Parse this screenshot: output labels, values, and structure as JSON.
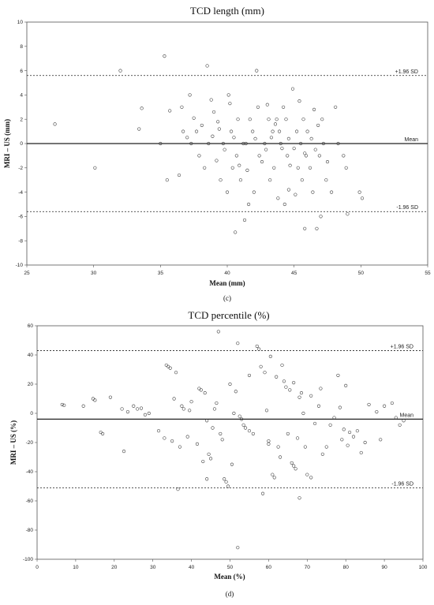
{
  "chart_data": [
    {
      "type": "scatter",
      "panel_label": "(c)",
      "title": "TCD length (mm)",
      "xlabel": "Mean (mm)",
      "ylabel": "MRI – US (mm)",
      "xlim": [
        25,
        55
      ],
      "ylim": [
        -10,
        10
      ],
      "xticks": [
        25,
        30,
        35,
        40,
        45,
        50,
        55
      ],
      "yticks": [
        -10,
        -8,
        -6,
        -4,
        -2,
        0,
        2,
        4,
        6,
        8,
        10
      ],
      "grid": false,
      "lines": [
        {
          "label": "+1.96 SD",
          "value": 5.6,
          "style": "dashed"
        },
        {
          "label": "Mean",
          "value": 0,
          "style": "solid"
        },
        {
          "label": "-1.96 SD",
          "value": -5.6,
          "style": "dashed"
        }
      ],
      "series": [
        {
          "marker": "open-circle",
          "points": [
            [
              27.1,
              1.6
            ],
            [
              30.1,
              -2
            ],
            [
              32,
              6
            ],
            [
              33.4,
              1.2
            ],
            [
              33.6,
              2.9
            ],
            [
              35,
              0
            ],
            [
              35.3,
              7.2
            ],
            [
              35.5,
              -3
            ],
            [
              35.7,
              2.7
            ],
            [
              36.4,
              -2.6
            ],
            [
              36.6,
              3
            ],
            [
              36.7,
              1
            ],
            [
              37,
              0.5
            ],
            [
              37.2,
              4
            ],
            [
              37.3,
              0
            ],
            [
              37.5,
              2.1
            ],
            [
              37.7,
              1
            ],
            [
              37.9,
              -1
            ],
            [
              38.1,
              1.5
            ],
            [
              38.3,
              -2
            ],
            [
              38.5,
              6.4
            ],
            [
              38.6,
              0
            ],
            [
              38.8,
              3.6
            ],
            [
              39,
              2.6
            ],
            [
              39.2,
              -1.4
            ],
            [
              39.3,
              1.8
            ],
            [
              39.5,
              -3
            ],
            [
              39.7,
              0
            ],
            [
              39.8,
              -0.5
            ],
            [
              40,
              -4
            ],
            [
              40.1,
              4
            ],
            [
              40.2,
              3.3
            ],
            [
              40.3,
              1
            ],
            [
              40.4,
              -2
            ],
            [
              40.5,
              0.5
            ],
            [
              40.6,
              -7.3
            ],
            [
              40.7,
              -1
            ],
            [
              40.8,
              2
            ],
            [
              41,
              -3
            ],
            [
              41.2,
              0
            ],
            [
              41.3,
              -6.3
            ],
            [
              41.5,
              -2.2
            ],
            [
              41.6,
              -5
            ],
            [
              41.7,
              2
            ],
            [
              41.9,
              1
            ],
            [
              42,
              -4
            ],
            [
              42.1,
              0.4
            ],
            [
              42.2,
              6
            ],
            [
              42.3,
              3
            ],
            [
              42.4,
              -1
            ],
            [
              42.6,
              -1.5
            ],
            [
              42.8,
              0
            ],
            [
              43,
              3.2
            ],
            [
              43.1,
              2
            ],
            [
              43.2,
              -3
            ],
            [
              43.3,
              0.5
            ],
            [
              43.4,
              1
            ],
            [
              43.5,
              -2
            ],
            [
              43.7,
              2
            ],
            [
              43.8,
              -4.5
            ],
            [
              43.9,
              1
            ],
            [
              44,
              0
            ],
            [
              44.1,
              -0.4
            ],
            [
              44.2,
              3
            ],
            [
              44.3,
              -5
            ],
            [
              44.4,
              2
            ],
            [
              44.5,
              -1
            ],
            [
              44.6,
              0.4
            ],
            [
              44.7,
              -1.8
            ],
            [
              44.9,
              4.5
            ],
            [
              45,
              -0.4
            ],
            [
              45.1,
              -4.2
            ],
            [
              45.2,
              1
            ],
            [
              45.3,
              -2
            ],
            [
              45.4,
              3.5
            ],
            [
              45.5,
              0
            ],
            [
              45.6,
              -3
            ],
            [
              45.7,
              2
            ],
            [
              45.8,
              -7
            ],
            [
              45.9,
              -1
            ],
            [
              46,
              1
            ],
            [
              46.2,
              -2
            ],
            [
              46.3,
              0.4
            ],
            [
              46.4,
              -4
            ],
            [
              46.5,
              2.8
            ],
            [
              46.6,
              -0.5
            ],
            [
              46.7,
              -7
            ],
            [
              46.8,
              1.5
            ],
            [
              46.9,
              -1
            ],
            [
              47,
              -6
            ],
            [
              47.1,
              2
            ],
            [
              47.2,
              0
            ],
            [
              47.4,
              -3
            ],
            [
              47.5,
              -1.5
            ],
            [
              47.8,
              -4
            ],
            [
              48.1,
              3
            ],
            [
              48.3,
              0
            ],
            [
              48.7,
              -1
            ],
            [
              48.9,
              -2
            ],
            [
              49,
              -5.8
            ],
            [
              49.9,
              -4
            ],
            [
              50.1,
              -4.5
            ],
            [
              44.6,
              -3.8
            ],
            [
              41.4,
              0
            ],
            [
              39.4,
              1.2
            ],
            [
              42.9,
              -0.5
            ],
            [
              43.6,
              1.6
            ],
            [
              45.8,
              -0.8
            ],
            [
              40.9,
              -1.8
            ],
            [
              38.9,
              0.6
            ]
          ]
        }
      ]
    },
    {
      "type": "scatter",
      "panel_label": "(d)",
      "title": "TCD percentile (%)",
      "xlabel": "Mean (%)",
      "ylabel": "MRI – US (%)",
      "xlim": [
        0,
        100
      ],
      "ylim": [
        -100,
        60
      ],
      "xticks": [
        0,
        10,
        20,
        30,
        40,
        50,
        60,
        70,
        80,
        90,
        100
      ],
      "yticks": [
        -100,
        -80,
        -60,
        -40,
        -20,
        0,
        20,
        40,
        60
      ],
      "grid": false,
      "lines": [
        {
          "label": "+1.96 SD",
          "value": 43,
          "style": "dashed"
        },
        {
          "label": "Mean",
          "value": -4,
          "style": "solid"
        },
        {
          "label": "-1.96 SD",
          "value": -51,
          "style": "dashed"
        }
      ],
      "series": [
        {
          "marker": "open-circle",
          "points": [
            [
              6.5,
              6
            ],
            [
              7,
              5.5
            ],
            [
              14.5,
              10
            ],
            [
              15,
              9
            ],
            [
              16.5,
              -13
            ],
            [
              17,
              -14
            ],
            [
              19,
              11
            ],
            [
              22,
              3
            ],
            [
              22.5,
              -26
            ],
            [
              23.5,
              1
            ],
            [
              25,
              5
            ],
            [
              26,
              3
            ],
            [
              27,
              3.5
            ],
            [
              28,
              -1
            ],
            [
              31.5,
              -12
            ],
            [
              33,
              -17
            ],
            [
              33.5,
              33
            ],
            [
              34,
              32
            ],
            [
              34.5,
              31
            ],
            [
              35,
              -19
            ],
            [
              35.5,
              10
            ],
            [
              36,
              28
            ],
            [
              36.5,
              -52
            ],
            [
              37,
              -23
            ],
            [
              37.5,
              5
            ],
            [
              38,
              3
            ],
            [
              39,
              -16
            ],
            [
              39.5,
              2
            ],
            [
              40,
              8
            ],
            [
              41.5,
              -21
            ],
            [
              42,
              17
            ],
            [
              42.5,
              16
            ],
            [
              43,
              -33
            ],
            [
              43.5,
              14
            ],
            [
              44,
              -5
            ],
            [
              44.5,
              -28
            ],
            [
              45,
              -31
            ],
            [
              45.5,
              -10
            ],
            [
              46,
              3
            ],
            [
              46.5,
              7
            ],
            [
              47,
              56
            ],
            [
              47.5,
              -14
            ],
            [
              48,
              -18
            ],
            [
              48.5,
              -45
            ],
            [
              49,
              -47
            ],
            [
              49.5,
              -50
            ],
            [
              50,
              20
            ],
            [
              50.5,
              -35
            ],
            [
              51,
              0
            ],
            [
              51.5,
              15
            ],
            [
              52,
              48
            ],
            [
              52.5,
              -2
            ],
            [
              53,
              -4
            ],
            [
              53.5,
              -8
            ],
            [
              54,
              -10
            ],
            [
              55,
              -12
            ],
            [
              56,
              -14
            ],
            [
              57,
              46
            ],
            [
              57.5,
              44
            ],
            [
              58,
              32
            ],
            [
              58.5,
              -55
            ],
            [
              59,
              28
            ],
            [
              59.5,
              2
            ],
            [
              60,
              -19
            ],
            [
              60.5,
              39
            ],
            [
              61,
              -42
            ],
            [
              61.5,
              -44
            ],
            [
              62,
              25
            ],
            [
              62.5,
              -23
            ],
            [
              63,
              -30
            ],
            [
              63.5,
              33
            ],
            [
              64,
              22
            ],
            [
              64.5,
              18
            ],
            [
              65,
              -14
            ],
            [
              65.5,
              16
            ],
            [
              66,
              -34
            ],
            [
              66.5,
              -36
            ],
            [
              67,
              -38
            ],
            [
              67.5,
              -17
            ],
            [
              68,
              -58
            ],
            [
              68.5,
              14
            ],
            [
              69,
              0
            ],
            [
              69.5,
              -23
            ],
            [
              70,
              -42
            ],
            [
              71,
              12
            ],
            [
              72,
              -7
            ],
            [
              73,
              5
            ],
            [
              74,
              -28
            ],
            [
              75,
              -23
            ],
            [
              76,
              -8
            ],
            [
              77,
              -3
            ],
            [
              78,
              26
            ],
            [
              78.5,
              4
            ],
            [
              79,
              -18
            ],
            [
              79.5,
              -11
            ],
            [
              80,
              19
            ],
            [
              80.5,
              -22
            ],
            [
              81,
              -13
            ],
            [
              82,
              -16
            ],
            [
              83,
              -12
            ],
            [
              84,
              -27
            ],
            [
              85,
              -20
            ],
            [
              86,
              6
            ],
            [
              88,
              1
            ],
            [
              89,
              -18
            ],
            [
              90,
              5
            ],
            [
              92,
              7
            ],
            [
              93,
              -3
            ],
            [
              94,
              -8
            ],
            [
              95,
              -5
            ],
            [
              52,
              -92
            ],
            [
              44,
              -45
            ],
            [
              12,
              5
            ],
            [
              29,
              0
            ],
            [
              73.5,
              17
            ],
            [
              66.5,
              21
            ],
            [
              60,
              -21
            ],
            [
              55,
              26
            ],
            [
              71,
              -44
            ],
            [
              68,
              11
            ]
          ]
        }
      ]
    }
  ]
}
